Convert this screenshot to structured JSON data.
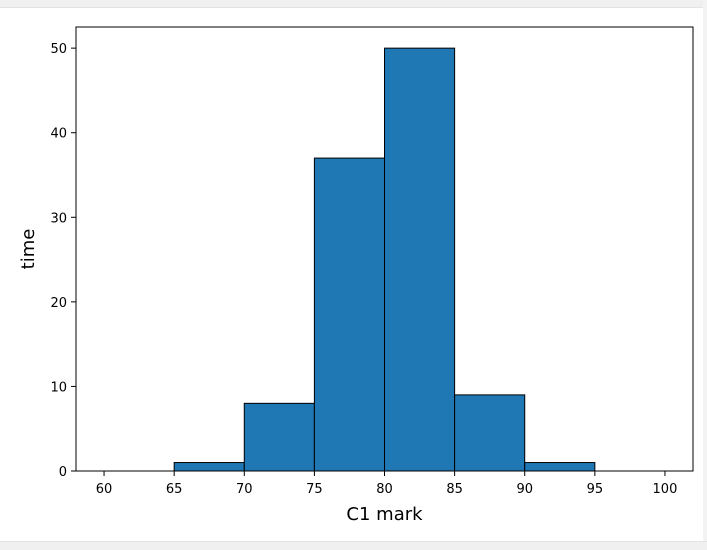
{
  "chart_data": {
    "type": "bar",
    "title": "",
    "xlabel": "C1 mark",
    "ylabel": "time",
    "bin_edges": [
      65,
      70,
      75,
      80,
      85,
      90,
      95
    ],
    "counts": [
      1,
      8,
      37,
      50,
      9,
      1
    ],
    "xlim": [
      58,
      102
    ],
    "ylim": [
      0,
      52.5
    ],
    "xticks": [
      60,
      65,
      70,
      75,
      80,
      85,
      90,
      95,
      100
    ],
    "yticks": [
      0,
      10,
      20,
      30,
      40,
      50
    ],
    "bar_color": "#1f77b4",
    "edge_color": "#000000",
    "grid": false,
    "legend": "none"
  }
}
